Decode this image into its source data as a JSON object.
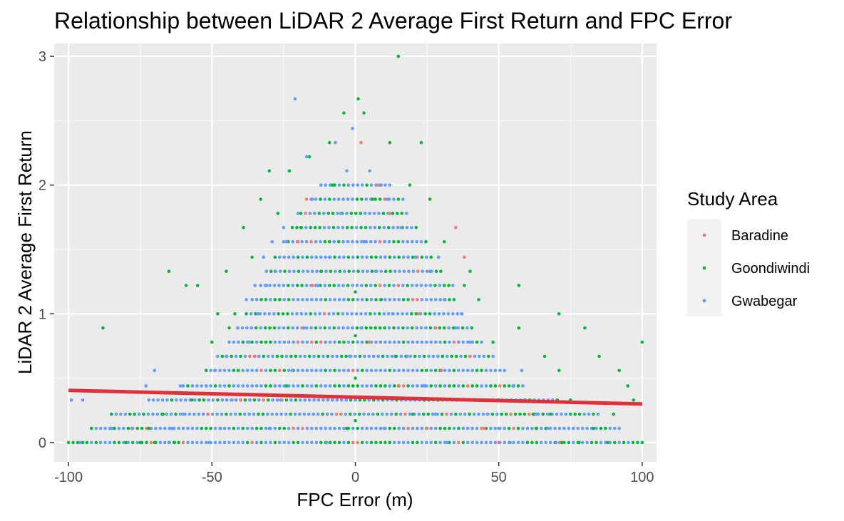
{
  "chart_data": {
    "type": "scatter",
    "title": "Relationship between LiDAR 2 Average First Return and FPC Error",
    "xlabel": "FPC Error (m)",
    "ylabel": "LiDAR 2 Average First Return",
    "xlim": [
      -105,
      105
    ],
    "ylim": [
      -0.15,
      3.1
    ],
    "x_ticks": [
      -100,
      -50,
      0,
      50,
      100
    ],
    "x_tick_labels": [
      "-100",
      "-50",
      "0",
      "50",
      "100"
    ],
    "y_ticks": [
      0,
      1,
      2,
      3
    ],
    "y_tick_labels": [
      "0",
      "1",
      "2",
      "3"
    ],
    "grid": true,
    "legend": {
      "title": "Study Area",
      "position": "right"
    },
    "series": [
      {
        "name": "Baradine",
        "color": "#F8766D",
        "points": [
          [
            2,
            2.33
          ],
          [
            8,
            2.0
          ],
          [
            35,
            1.67
          ],
          [
            38,
            1.44
          ],
          [
            -28,
            1.33
          ],
          [
            22,
            1.0
          ],
          [
            -35,
            0.67
          ],
          [
            30,
            0.56
          ],
          [
            -60,
            0.0
          ],
          [
            25,
            0.11
          ],
          [
            -10,
            0.0
          ],
          [
            40,
            0.33
          ],
          [
            15,
            0.44
          ],
          [
            -45,
            0.67
          ],
          [
            50,
            0.0
          ],
          [
            -20,
            1.56
          ],
          [
            12,
            1.78
          ],
          [
            -5,
            0.22
          ],
          [
            45,
            0.11
          ],
          [
            -40,
            0.33
          ],
          [
            28,
            0.89
          ],
          [
            -15,
            1.22
          ],
          [
            5,
            0.78
          ]
        ]
      },
      {
        "name": "Goondiwindi",
        "color": "#00BA38",
        "points": [
          [
            15,
            3.0
          ],
          [
            1,
            2.67
          ],
          [
            3,
            2.56
          ],
          [
            -4,
            2.56
          ],
          [
            -9,
            2.33
          ],
          [
            12,
            2.33
          ],
          [
            23,
            2.33
          ],
          [
            -16,
            2.22
          ],
          [
            -30,
            2.11
          ],
          [
            -23,
            2.11
          ],
          [
            19,
            2.0
          ],
          [
            -39,
            1.67
          ],
          [
            -65,
            1.33
          ],
          [
            -45,
            1.33
          ],
          [
            -59,
            1.22
          ],
          [
            -55,
            1.22
          ],
          [
            57,
            1.22
          ],
          [
            -48,
            1.0
          ],
          [
            71,
            1.0
          ],
          [
            -88,
            0.89
          ],
          [
            57,
            0.89
          ],
          [
            -50,
            0.78
          ],
          [
            100,
            0.78
          ],
          [
            0,
            1.17
          ],
          [
            0,
            0.83
          ],
          [
            0,
            0.5
          ],
          [
            -92,
            0.11
          ],
          [
            -80,
            0.0
          ],
          [
            -95,
            0.0
          ],
          [
            85,
            0.67
          ],
          [
            95,
            0.44
          ],
          [
            92,
            0.56
          ],
          [
            90,
            0.22
          ],
          [
            75,
            0.33
          ],
          [
            68,
            0.22
          ],
          [
            78,
            0.0
          ],
          [
            88,
            0.0
          ],
          [
            80,
            0.89
          ],
          [
            71,
            0.56
          ],
          [
            63,
            0.11
          ],
          [
            -84,
            0.11
          ],
          [
            -63,
            0.0
          ],
          [
            60,
            0.0
          ],
          [
            -70,
            0.0
          ],
          [
            -75,
            0.0
          ],
          [
            83,
            0.11
          ],
          [
            97,
            0.33
          ],
          [
            66,
            0.67
          ],
          [
            -33,
            1.89
          ],
          [
            26,
            1.89
          ],
          [
            -27,
            1.78
          ],
          [
            31,
            1.56
          ],
          [
            -19,
            1.67
          ],
          [
            40,
            1.33
          ],
          [
            43,
            1.11
          ],
          [
            -42,
            1.0
          ],
          [
            48,
            0.78
          ],
          [
            -52,
            0.56
          ],
          [
            55,
            0.44
          ],
          [
            -57,
            0.33
          ],
          [
            62,
            0.22
          ],
          [
            -67,
            0.22
          ],
          [
            72,
            0.0
          ],
          [
            -72,
            0.11
          ],
          [
            50,
            0.33
          ],
          [
            -44,
            0.89
          ],
          [
            38,
            1.22
          ],
          [
            -36,
            1.44
          ],
          [
            34,
            0.33
          ],
          [
            -8,
            2.0
          ],
          [
            6,
            1.89
          ],
          [
            -12,
            1.33
          ],
          [
            9,
            1.11
          ],
          [
            14,
            0.67
          ],
          [
            -24,
            0.44
          ],
          [
            20,
            0.22
          ],
          [
            -3,
            0.11
          ],
          [
            0,
            0.17
          ]
        ]
      },
      {
        "name": "Gwabegar",
        "color": "#619CFF",
        "points": [
          [
            -21,
            2.67
          ],
          [
            -1,
            2.44
          ],
          [
            -7,
            2.33
          ],
          [
            -17,
            2.22
          ],
          [
            -3,
            2.11
          ],
          [
            -12,
            2.0
          ],
          [
            9,
            2.0
          ],
          [
            -25,
            1.67
          ],
          [
            -29,
            1.56
          ],
          [
            -32,
            1.44
          ],
          [
            29,
            1.44
          ],
          [
            -35,
            1.22
          ],
          [
            34,
            1.22
          ],
          [
            -38,
            1.11
          ],
          [
            37,
            1.0
          ],
          [
            -41,
            0.89
          ],
          [
            44,
            0.78
          ],
          [
            -45,
            0.67
          ],
          [
            48,
            0.67
          ],
          [
            -49,
            0.56
          ],
          [
            52,
            0.56
          ],
          [
            -52,
            0.44
          ],
          [
            55,
            0.44
          ],
          [
            -56,
            0.33
          ],
          [
            59,
            0.33
          ],
          [
            -60,
            0.22
          ],
          [
            63,
            0.22
          ],
          [
            -64,
            0.11
          ],
          [
            67,
            0.11
          ],
          [
            -68,
            0.0
          ],
          [
            70,
            0.0
          ],
          [
            -70,
            0.56
          ],
          [
            -85,
            0.11
          ],
          [
            -96,
            0.0
          ],
          [
            -99,
            0.33
          ],
          [
            -95,
            0.33
          ],
          [
            -73,
            0.44
          ],
          [
            -78,
            0.11
          ],
          [
            -65,
            0.0
          ],
          [
            -61,
            0.44
          ],
          [
            58,
            0.56
          ],
          [
            -15,
            1.89
          ],
          [
            11,
            1.89
          ],
          [
            -20,
            1.78
          ],
          [
            16,
            1.67
          ],
          [
            -24,
            1.56
          ],
          [
            21,
            1.44
          ],
          [
            -28,
            1.33
          ],
          [
            26,
            1.33
          ],
          [
            -31,
            1.22
          ],
          [
            31,
            1.11
          ],
          [
            -34,
            1.0
          ],
          [
            35,
            0.89
          ],
          [
            -37,
            0.78
          ],
          [
            40,
            0.78
          ],
          [
            -43,
            0.33
          ],
          [
            46,
            0.22
          ],
          [
            -47,
            0.11
          ],
          [
            50,
            0.11
          ],
          [
            -51,
            0.0
          ],
          [
            54,
            0.0
          ],
          [
            5,
            2.11
          ],
          [
            -5,
            1.78
          ],
          [
            3,
            1.56
          ],
          [
            -9,
            1.44
          ],
          [
            7,
            1.33
          ],
          [
            -13,
            1.22
          ],
          [
            13,
            1.0
          ],
          [
            -18,
            0.89
          ],
          [
            18,
            0.67
          ],
          [
            -22,
            0.56
          ],
          [
            24,
            0.44
          ],
          [
            -26,
            0.33
          ],
          [
            28,
            0.22
          ],
          [
            -30,
            0.11
          ],
          [
            32,
            0.0
          ],
          [
            -10,
            0.0
          ],
          [
            10,
            0.11
          ],
          [
            0,
            0.33
          ],
          [
            -2,
            0.67
          ],
          [
            2,
            0.89
          ]
        ]
      }
    ],
    "bands": {
      "comment_free": true,
      "y_levels": [
        0,
        0.11,
        0.22,
        0.33,
        0.44,
        0.56,
        0.67,
        0.78,
        0.89,
        1.0,
        1.11,
        1.22,
        1.33,
        1.44,
        1.56,
        1.67,
        1.78,
        1.89,
        2.0
      ],
      "x_half_widths": [
        100,
        92,
        85,
        72,
        60,
        52,
        48,
        44,
        41,
        38,
        36,
        33,
        31,
        28,
        25,
        22,
        19,
        17,
        12
      ]
    },
    "trend_line": {
      "color": "#E0303A",
      "x": [
        -100,
        100
      ],
      "y": [
        0.405,
        0.3
      ]
    }
  }
}
